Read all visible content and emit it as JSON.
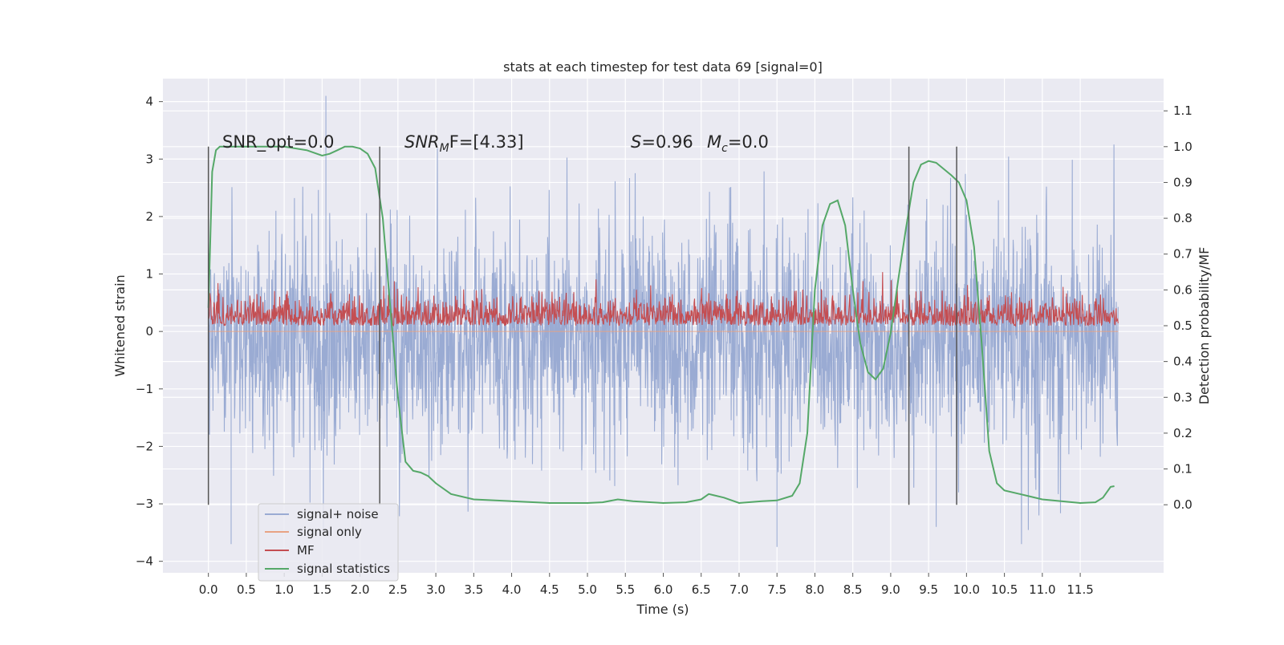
{
  "chart_data": {
    "type": "line",
    "title": "stats at each timestep for test data 69 [signal=0]",
    "xlabel": "Time (s)",
    "ylabel": "Whitened strain",
    "y2label": "Detection probability/MF",
    "xlim": [
      -0.6,
      12.6
    ],
    "ylim": [
      -4.2,
      4.4
    ],
    "y2lim": [
      -0.19,
      1.19
    ],
    "x_ticks": [
      "0.0",
      "0.5",
      "1.0",
      "1.5",
      "2.0",
      "2.5",
      "3.0",
      "3.5",
      "4.0",
      "4.5",
      "5.0",
      "5.5",
      "6.0",
      "6.5",
      "7.0",
      "7.5",
      "8.0",
      "8.5",
      "9.0",
      "9.5",
      "10.0",
      "10.5",
      "11.0",
      "11.5"
    ],
    "x_tick_values": [
      0,
      0.5,
      1,
      1.5,
      2,
      2.5,
      3,
      3.5,
      4,
      4.5,
      5,
      5.5,
      6,
      6.5,
      7,
      7.5,
      8,
      8.5,
      9,
      9.5,
      10,
      10.5,
      11,
      11.5
    ],
    "y_ticks": [
      "4",
      "3",
      "2",
      "1",
      "0",
      "−1",
      "−2",
      "−3",
      "−4"
    ],
    "y_tick_values": [
      4,
      3,
      2,
      1,
      0,
      -1,
      -2,
      -3,
      -4
    ],
    "y2_ticks": [
      "1.1",
      "1.0",
      "0.9",
      "0.8",
      "0.7",
      "0.6",
      "0.5",
      "0.4",
      "0.3",
      "0.2",
      "0.1",
      "0.0"
    ],
    "y2_tick_values": [
      1.1,
      1.0,
      0.9,
      0.8,
      0.7,
      0.6,
      0.5,
      0.4,
      0.3,
      0.2,
      0.1,
      0.0
    ],
    "grid": true,
    "legend_position": "lower-left",
    "annotations": {
      "snr_opt": "SNR_opt=0.0",
      "snr_mf_label": "SNR",
      "snr_mf_sub": "M",
      "snr_mf_value": "F=[4.33]",
      "s_label": "S",
      "s_value": "=0.96",
      "mc_label": "M",
      "mc_sub": "c",
      "mc_value": "=0.0"
    },
    "vertical_markers_s": [
      0.0,
      2.26,
      9.24,
      9.87
    ],
    "vertical_marker_range_y2": [
      0.0,
      1.0
    ],
    "series": [
      {
        "name": "signal+ noise",
        "color": "#9aabd3",
        "axis": "left",
        "x_range": [
          0.0,
          12.0
        ],
        "band_typical": [
          -1.7,
          1.4
        ],
        "band_peaks": [
          -3.2,
          3.35
        ],
        "extremes": [
          {
            "x": 1.55,
            "y": 4.1
          },
          {
            "x": 0.3,
            "y": -3.7
          },
          {
            "x": 7.5,
            "y": -3.75
          },
          {
            "x": 9.6,
            "y": -3.4
          }
        ]
      },
      {
        "name": "signal only",
        "color": "#e8a383",
        "axis": "left",
        "x": [
          0.0,
          12.0
        ],
        "y": [
          0.0,
          0.0
        ]
      },
      {
        "name": "MF",
        "color": "#c44e52",
        "axis": "right",
        "x_range": [
          0.0,
          12.0
        ],
        "band_typical": [
          0.5,
          0.6
        ],
        "band_peaks": [
          0.49,
          0.65
        ]
      },
      {
        "name": "signal statistics",
        "color": "#55a868",
        "axis": "right",
        "x": [
          0.0,
          0.05,
          0.1,
          0.15,
          0.2,
          0.3,
          0.5,
          1.0,
          1.3,
          1.5,
          1.6,
          1.7,
          1.8,
          1.9,
          2.0,
          2.1,
          2.2,
          2.3,
          2.4,
          2.5,
          2.6,
          2.7,
          2.8,
          2.9,
          3.0,
          3.2,
          3.5,
          4.0,
          4.5,
          5.0,
          5.2,
          5.4,
          5.6,
          6.0,
          6.3,
          6.5,
          6.6,
          6.8,
          7.0,
          7.3,
          7.5,
          7.7,
          7.8,
          7.9,
          8.0,
          8.1,
          8.2,
          8.3,
          8.4,
          8.5,
          8.6,
          8.7,
          8.8,
          8.9,
          9.0,
          9.1,
          9.2,
          9.3,
          9.4,
          9.5,
          9.6,
          9.8,
          9.9,
          10.0,
          10.1,
          10.2,
          10.3,
          10.4,
          10.5,
          10.8,
          11.0,
          11.5,
          11.7,
          11.8,
          11.9,
          11.95
        ],
        "y": [
          0.55,
          0.93,
          0.99,
          1.0,
          1.0,
          1.0,
          1.0,
          1.0,
          0.99,
          0.975,
          0.98,
          0.99,
          1.0,
          1.0,
          0.995,
          0.98,
          0.94,
          0.8,
          0.55,
          0.3,
          0.12,
          0.095,
          0.09,
          0.08,
          0.06,
          0.03,
          0.015,
          0.01,
          0.005,
          0.005,
          0.007,
          0.015,
          0.01,
          0.005,
          0.007,
          0.015,
          0.03,
          0.02,
          0.005,
          0.01,
          0.012,
          0.025,
          0.06,
          0.2,
          0.6,
          0.78,
          0.84,
          0.85,
          0.78,
          0.6,
          0.45,
          0.37,
          0.35,
          0.38,
          0.48,
          0.63,
          0.77,
          0.9,
          0.95,
          0.96,
          0.955,
          0.92,
          0.9,
          0.85,
          0.72,
          0.45,
          0.15,
          0.06,
          0.04,
          0.025,
          0.015,
          0.005,
          0.007,
          0.02,
          0.05,
          0.052
        ]
      }
    ]
  }
}
